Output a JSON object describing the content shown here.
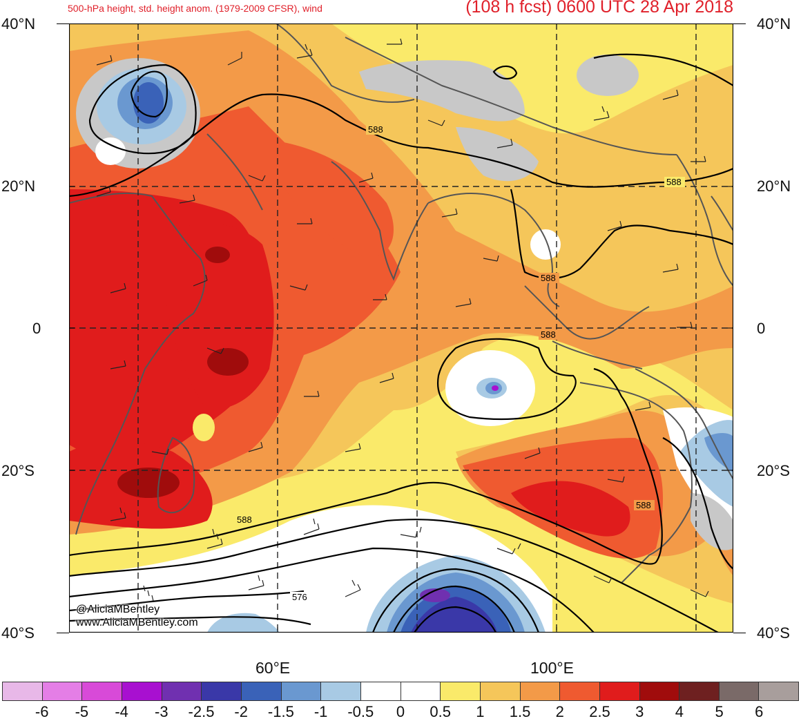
{
  "header": {
    "left_title": "500-hPa height, std. height anom. (1979-2009 CFSR), wind",
    "right_title": "(108 h fcst) 0600 UTC 28 Apr 2018"
  },
  "map": {
    "region": "Indian Ocean",
    "lat_labels": [
      "40°N",
      "20°N",
      "0",
      "20°S",
      "40°S"
    ],
    "lon_labels": [
      "60°E",
      "100°E"
    ],
    "contour_labels": [
      "588",
      "588",
      "588",
      "588",
      "588",
      "588",
      "576"
    ],
    "features": [
      "subtropical-ridge",
      "tropical-cyclone-low",
      "southern-trough",
      "northwest-low"
    ]
  },
  "credit": {
    "handle": "@AliciaMBentley",
    "url": "www.AliciaMBentley.com"
  },
  "colorbar": {
    "colors": [
      "#e8b8e8",
      "#e47ee6",
      "#d84ad8",
      "#a810d0",
      "#7030b0",
      "#3a38a8",
      "#3a62b8",
      "#6a98d0",
      "#a8cae4",
      "#ffffff",
      "#ffffff",
      "#faea6a",
      "#f5c65a",
      "#f39a48",
      "#ef5a30",
      "#e01c1c",
      "#a00c0c",
      "#6e2020",
      "#7a6a68",
      "#a89e9c"
    ],
    "labels": [
      "-6",
      "-5",
      "-4",
      "-3",
      "-2.5",
      "-2",
      "-1.5",
      "-1",
      "-0.5",
      "0",
      "0.5",
      "1",
      "1.5",
      "2",
      "2.5",
      "3",
      "4",
      "5",
      "6"
    ]
  }
}
